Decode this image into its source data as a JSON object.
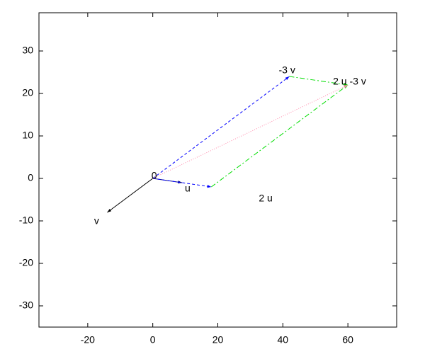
{
  "chart_data": {
    "type": "vector",
    "xlim": [
      -35,
      75
    ],
    "ylim": [
      -35,
      39
    ],
    "xticks": [
      -20,
      0,
      20,
      40,
      60
    ],
    "yticks": [
      -30,
      -20,
      -10,
      0,
      10,
      20,
      30
    ],
    "vectors": [
      {
        "x0": 0,
        "y0": 0,
        "x1": -14,
        "y1": -8,
        "color": "#000000",
        "dash": "solid"
      },
      {
        "x0": 0,
        "y0": 0,
        "x1": 9,
        "y1": -1,
        "color": "#000080",
        "dash": "solid"
      },
      {
        "x0": 0,
        "y0": 0,
        "x1": 18,
        "y1": -2,
        "color": "#0000ff",
        "dash": "dashed"
      },
      {
        "x0": 0,
        "y0": 0,
        "x1": 42,
        "y1": 24,
        "color": "#0000ff",
        "dash": "dashed"
      },
      {
        "x0": 18,
        "y0": -2,
        "x1": 60,
        "y1": 22,
        "color": "#00dd00",
        "dash": "dashdot"
      },
      {
        "x0": 42,
        "y0": 24,
        "x1": 60,
        "y1": 22,
        "color": "#00dd00",
        "dash": "dashdot"
      },
      {
        "x0": 0,
        "y0": 0,
        "x1": 60,
        "y1": 22,
        "color": "#ff88aa",
        "dash": "dotted"
      }
    ],
    "labels": [
      {
        "text": "0",
        "x": 0,
        "y": 0
      },
      {
        "text": "u",
        "x": 9,
        "y": -1
      },
      {
        "text": "2 u",
        "x": 18,
        "y": -2
      },
      {
        "text": "v",
        "x": -14,
        "y": -8
      },
      {
        "text": "-3 v",
        "x": 42,
        "y": 24
      },
      {
        "text": "2 u -3 v",
        "x": 60,
        "y": 22
      }
    ]
  }
}
